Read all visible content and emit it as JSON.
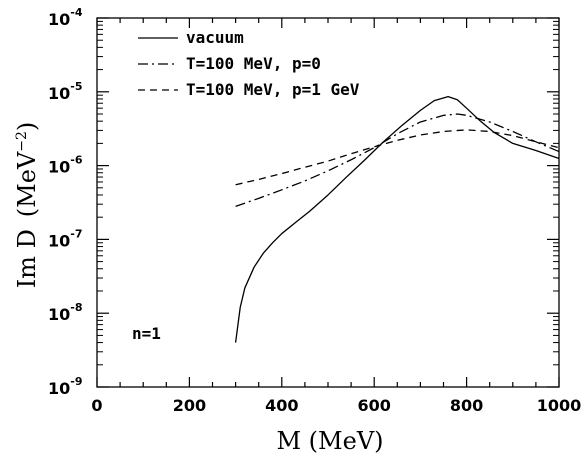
{
  "chart_data": {
    "type": "line",
    "xlabel": "M (MeV)",
    "ylabel": {
      "base": "Im D",
      "unit_open": "(MeV",
      "unit_exp": "−2",
      "unit_close": ")"
    },
    "xlim": [
      0,
      1000
    ],
    "ylim": [
      1e-09,
      0.0001
    ],
    "yscale": "log",
    "grid": false,
    "legend_position": "top-left",
    "x_ticks": [
      "0",
      "200",
      "400",
      "600",
      "800",
      "1000"
    ],
    "y_ticks": [
      {
        "base": "10",
        "exp": "-9"
      },
      {
        "base": "10",
        "exp": "-8"
      },
      {
        "base": "10",
        "exp": "-7"
      },
      {
        "base": "10",
        "exp": "-6"
      },
      {
        "base": "10",
        "exp": "-5"
      },
      {
        "base": "10",
        "exp": "-4"
      }
    ],
    "annotation": "n=1",
    "series": [
      {
        "name": "vacuum",
        "style": "solid",
        "x": [
          300,
          310,
          320,
          340,
          360,
          380,
          400,
          430,
          460,
          500,
          540,
          580,
          620,
          660,
          700,
          730,
          760,
          780,
          800,
          830,
          860,
          900,
          950,
          1000
        ],
        "y": [
          4e-09,
          1.2e-08,
          2.2e-08,
          4.2e-08,
          6.5e-08,
          9e-08,
          1.2e-07,
          1.7e-07,
          2.4e-07,
          4e-07,
          7e-07,
          1.2e-06,
          2.1e-06,
          3.5e-06,
          5.6e-06,
          7.6e-06,
          8.6e-06,
          7.8e-06,
          6e-06,
          4e-06,
          2.8e-06,
          2e-06,
          1.6e-06,
          1.25e-06
        ]
      },
      {
        "name": "T=100 MeV, p=0",
        "style": "dashdot",
        "x": [
          300,
          350,
          400,
          450,
          500,
          550,
          600,
          650,
          700,
          750,
          780,
          800,
          850,
          900,
          950,
          1000
        ],
        "y": [
          2.8e-07,
          3.6e-07,
          4.7e-07,
          6.2e-07,
          8.5e-07,
          1.2e-06,
          1.75e-06,
          2.7e-06,
          3.9e-06,
          4.8e-06,
          5e-06,
          4.8e-06,
          3.9e-06,
          2.9e-06,
          2.1e-06,
          1.55e-06
        ]
      },
      {
        "name": "T=100 MeV, p=1 GeV",
        "style": "dashed",
        "x": [
          300,
          350,
          400,
          450,
          500,
          550,
          600,
          650,
          700,
          750,
          800,
          850,
          900,
          950,
          1000
        ],
        "y": [
          5.5e-07,
          6.5e-07,
          7.8e-07,
          9.5e-07,
          1.15e-06,
          1.45e-06,
          1.8e-06,
          2.2e-06,
          2.6e-06,
          2.9e-06,
          3.05e-06,
          2.9e-06,
          2.55e-06,
          2.1e-06,
          1.75e-06
        ]
      }
    ]
  }
}
